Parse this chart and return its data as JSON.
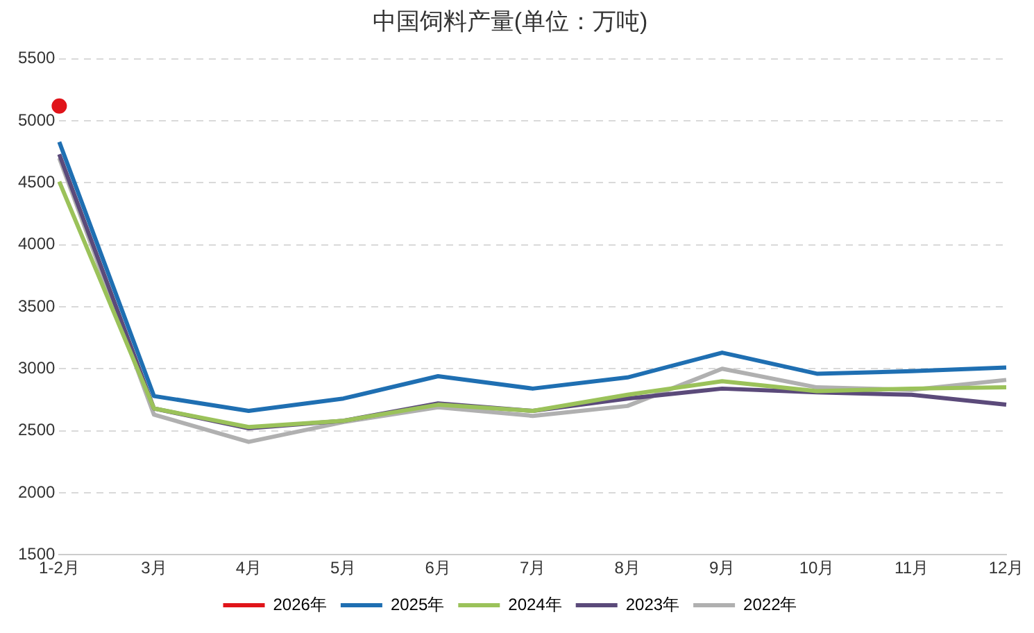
{
  "chart_data": {
    "type": "line",
    "title": "中国饲料产量(单位：万吨)",
    "categories": [
      "1-2月",
      "3月",
      "4月",
      "5月",
      "6月",
      "7月",
      "8月",
      "9月",
      "10月",
      "11月",
      "12月"
    ],
    "ylim": [
      1500,
      5500
    ],
    "yticks": [
      1500,
      2000,
      2500,
      3000,
      3500,
      4000,
      4500,
      5000,
      5500
    ],
    "grid": "y",
    "legend": "bottom",
    "marker": "none",
    "series": [
      {
        "name": "2026年",
        "color": "#e0141a",
        "marker": "circle",
        "values": [
          5120,
          null,
          null,
          null,
          null,
          null,
          null,
          null,
          null,
          null,
          null
        ]
      },
      {
        "name": "2025年",
        "color": "#1f6fb2",
        "values": [
          4830,
          2780,
          2660,
          2760,
          2940,
          2840,
          2930,
          3130,
          2960,
          2980,
          3010
        ]
      },
      {
        "name": "2024年",
        "color": "#9bc25a",
        "values": [
          4510,
          2680,
          2530,
          2580,
          2710,
          2660,
          2790,
          2900,
          2820,
          2840,
          2850
        ]
      },
      {
        "name": "2023年",
        "color": "#5b4a7a",
        "values": [
          4730,
          2680,
          2520,
          2580,
          2720,
          2660,
          2760,
          2840,
          2810,
          2790,
          2710
        ]
      },
      {
        "name": "2022年",
        "color": "#b0b0b0",
        "values": [
          4700,
          2630,
          2410,
          2570,
          2690,
          2620,
          2700,
          3000,
          2850,
          2830,
          2910
        ]
      }
    ]
  }
}
